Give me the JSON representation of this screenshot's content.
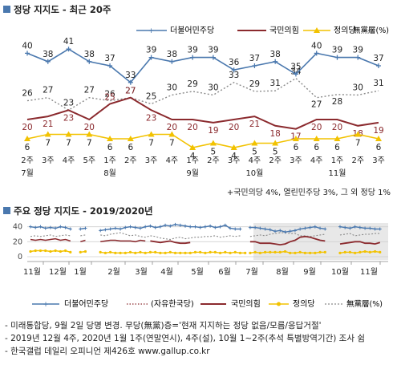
{
  "colors": {
    "minjoo": "#4a78ae",
    "ppp": "#8b2a2e",
    "justice": "#f2c200",
    "none": "#8a8a8a",
    "jayu": "#8b2a2e",
    "shade": "#e8e8e8"
  },
  "chart_data": [
    {
      "type": "line",
      "title": "정당 지지도 - 최근 20주",
      "categories": [
        "2주",
        "3주",
        "4주",
        "5주",
        "1주",
        "2주",
        "3주",
        "4주",
        "1주",
        "2주",
        "3주",
        "4주",
        "2주",
        "3주",
        "4주",
        "1주",
        "2주",
        "3주"
      ],
      "months": [
        {
          "label": "7월",
          "at": 0
        },
        {
          "label": "8월",
          "at": 4
        },
        {
          "label": "9월",
          "at": 8
        },
        {
          "label": "10월",
          "at": 11
        },
        {
          "label": "11월",
          "at": 15
        }
      ],
      "series": [
        {
          "name": "더불어민주당",
          "key": "minjoo",
          "values": [
            40,
            38,
            41,
            38,
            37,
            33,
            39,
            38,
            39,
            39,
            36,
            37,
            38,
            35,
            40,
            39,
            39,
            37
          ]
        },
        {
          "name": "국민의힘",
          "key": "ppp",
          "values": [
            20,
            21,
            23,
            20,
            25,
            27,
            23,
            20,
            20,
            19,
            20,
            21,
            18,
            17,
            20,
            20,
            18,
            19
          ]
        },
        {
          "name": "정의당",
          "key": "justice",
          "values": [
            6,
            7,
            7,
            7,
            6,
            6,
            7,
            7,
            4,
            5,
            4,
            5,
            5,
            6,
            6,
            6,
            7,
            6
          ]
        },
        {
          "name": "無黨層(%)",
          "key": "none",
          "values": [
            26,
            27,
            23,
            27,
            26,
            27,
            25,
            30,
            29,
            30,
            33,
            29,
            31,
            34,
            27,
            28,
            30,
            31
          ]
        }
      ],
      "note": "+국민의당 4%, 열린민주당 3%, 그 외 정당 1%"
    },
    {
      "type": "line",
      "title": "주요 정당 지지도 - 2019/2020년",
      "ytick_labels": [
        "40",
        "20",
        "0"
      ],
      "ylim": [
        0,
        45
      ],
      "yticks": [
        40,
        20,
        0
      ],
      "month_labels": [
        "11월",
        "12월",
        "1월",
        "2월",
        "3월",
        "4월",
        "5월",
        "6월",
        "7월",
        "8월",
        "9월",
        "10월",
        "11월"
      ],
      "legend": [
        "더불어민주당",
        "(자유한국당)",
        "국민의힘",
        "정의당",
        "無黨層(%)"
      ],
      "segments": [
        {
          "start": 0,
          "minjoo": [
            40,
            39,
            40,
            38,
            39,
            38,
            40,
            39,
            37
          ],
          "jayu": [
            23,
            22,
            23,
            22,
            23,
            24,
            22,
            23,
            21
          ],
          "justice": [
            7,
            8,
            8,
            8,
            7,
            8,
            7,
            8,
            6
          ],
          "none": [
            27,
            28,
            27,
            28,
            29,
            27,
            28,
            29,
            28
          ]
        },
        {
          "start": 10,
          "minjoo": [
            37,
            38
          ],
          "jayu": [
            20,
            22
          ],
          "justice": [
            6,
            7
          ],
          "none": [
            28,
            29
          ]
        },
        {
          "start": 14,
          "minjoo": [
            35,
            36,
            37,
            38,
            37,
            39,
            40,
            39,
            38,
            40,
            41,
            39,
            40,
            42,
            41,
            43,
            42,
            41,
            40,
            40,
            39,
            40,
            41,
            39,
            40,
            42,
            38,
            37,
            37
          ],
          "jayu": [
            20,
            21,
            22,
            22,
            21,
            21,
            21,
            20,
            22,
            21
          ],
          "ppp": [
            21,
            20,
            19,
            20,
            21,
            19,
            18,
            18,
            19
          ],
          "justice": [
            6,
            5,
            6,
            5,
            5,
            5,
            6,
            5,
            6,
            5,
            6,
            6,
            5,
            5,
            6,
            5,
            5,
            5,
            5,
            6,
            6,
            5,
            6,
            6,
            5,
            6,
            5,
            6,
            5,
            5
          ],
          "none": [
            29,
            28,
            30,
            31,
            32,
            30,
            28,
            29,
            27,
            26,
            28,
            27,
            25,
            24,
            23,
            25,
            26,
            24,
            25,
            26,
            26,
            27,
            27,
            28,
            26,
            27,
            28,
            27,
            28
          ]
        },
        {
          "start": 44,
          "minjoo": [
            39,
            39,
            38,
            37,
            36,
            34,
            35,
            33,
            34,
            35,
            37,
            38,
            39,
            40,
            38,
            37
          ],
          "ppp": [
            20,
            20,
            18,
            18,
            18,
            17,
            16,
            17,
            20,
            22,
            26,
            27,
            26,
            24,
            22,
            21
          ],
          "justice": [
            5,
            6,
            5,
            6,
            6,
            6,
            6,
            7,
            5,
            5,
            6,
            5,
            5,
            5,
            6,
            6
          ],
          "none": [
            27,
            28,
            29,
            28,
            30,
            31,
            32,
            32,
            31,
            31,
            28,
            28,
            27,
            28,
            29,
            30
          ]
        },
        {
          "start": 62,
          "minjoo": [
            40,
            39,
            38,
            40,
            39,
            38,
            38,
            37,
            37
          ],
          "ppp": [
            17,
            18,
            19,
            20,
            20,
            18,
            18,
            17,
            19
          ],
          "justice": [
            5,
            6,
            6,
            5,
            6,
            7,
            6,
            7,
            6
          ],
          "none": [
            29,
            30,
            31,
            28,
            29,
            30,
            30,
            31,
            31
          ]
        }
      ],
      "shaded_from_month": "7월"
    }
  ],
  "notes": [
    "- 미래통합당, 9월 2일 당명 변경. 무당(無黨)층='현재 지지하는 정당 없음/모름/응답거절'",
    "- 2019년 12월 4주, 2020년 1월 1주(연말연시), 4주(설), 10월 1~2주(추석 특별방역기간) 조사 쉼",
    "- 한국갤럽 데일리 오피니언 제426호 www.gallup.co.kr"
  ]
}
